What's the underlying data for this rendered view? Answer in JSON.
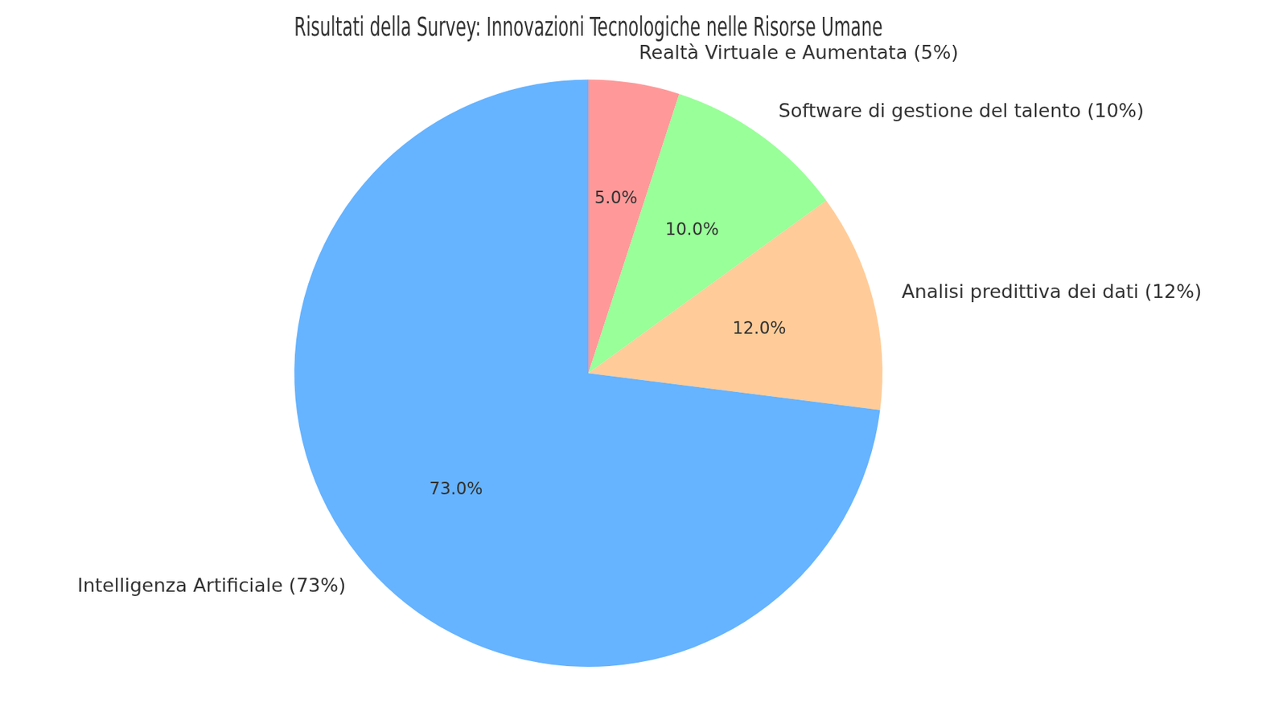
{
  "chart_data": {
    "type": "pie",
    "title": "Risultati della Survey: Innovazioni Tecnologiche nelle Risorse Umane",
    "categories": [
      "Realtà Virtuale e Aumentata (5%)",
      "Software di gestione del talento (10%)",
      "Analisi predittiva dei dati (12%)",
      "Intelligenza Artificiale (73%)"
    ],
    "values": [
      5,
      10,
      12,
      73
    ],
    "value_labels": [
      "5.0%",
      "10.0%",
      "12.0%",
      "73.0%"
    ],
    "colors": [
      "#ff9999",
      "#99ff99",
      "#ffcc99",
      "#66b3ff"
    ],
    "data_labels": true
  }
}
